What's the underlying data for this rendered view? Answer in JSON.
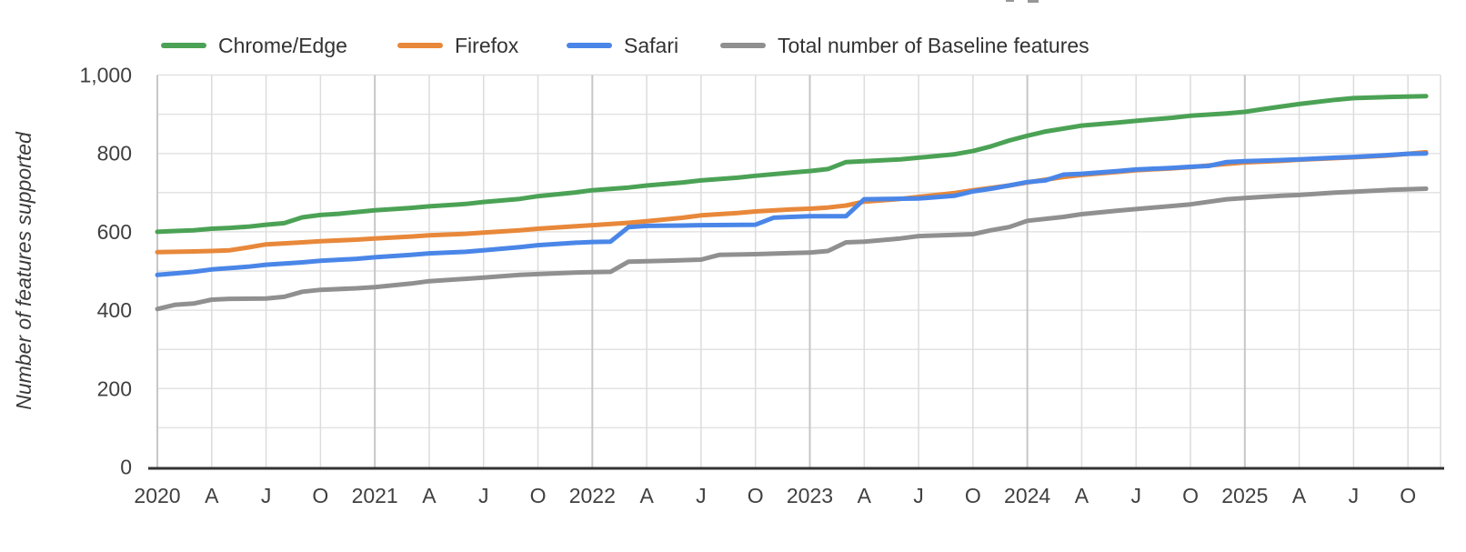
{
  "page": {
    "background": "#ffffff"
  },
  "cropped_title_artifact": {
    "visible": true,
    "description": "two tiny gray marks of cut-off text at top edge"
  },
  "legend": [
    {
      "label": "Chrome/Edge",
      "color": "#4ba255"
    },
    {
      "label": "Firefox",
      "color": "#e8883a"
    },
    {
      "label": "Safari",
      "color": "#4a86e8"
    },
    {
      "label": "Total number of Baseline features",
      "color": "#909090"
    }
  ],
  "chart_data": {
    "type": "line",
    "title": "",
    "xlabel": "",
    "ylabel": "Number of features supported",
    "x_unit": "months since 2020-01",
    "xlim": [
      0,
      70.9
    ],
    "ylim": [
      0,
      1000
    ],
    "grid": {
      "horizontal_step": 100,
      "vertical_step_months": 3,
      "h_color": "#e3e3e3",
      "v_color": "#dcdcdc",
      "v_year_color": "#c7c7c7",
      "axis_color": "#333333",
      "legend_position": "top"
    },
    "y_ticks": [
      {
        "v": 0,
        "label": "0"
      },
      {
        "v": 200,
        "label": "200"
      },
      {
        "v": 400,
        "label": "400"
      },
      {
        "v": 600,
        "label": "600"
      },
      {
        "v": 800,
        "label": "800"
      },
      {
        "v": 1000,
        "label": "1,000"
      }
    ],
    "x_ticks": [
      {
        "m": 0,
        "label": "2020"
      },
      {
        "m": 3,
        "label": "A"
      },
      {
        "m": 6,
        "label": "J"
      },
      {
        "m": 9,
        "label": "O"
      },
      {
        "m": 12,
        "label": "2021"
      },
      {
        "m": 15,
        "label": "A"
      },
      {
        "m": 18,
        "label": "J"
      },
      {
        "m": 21,
        "label": "O"
      },
      {
        "m": 24,
        "label": "2022"
      },
      {
        "m": 27,
        "label": "A"
      },
      {
        "m": 30,
        "label": "J"
      },
      {
        "m": 33,
        "label": "O"
      },
      {
        "m": 36,
        "label": "2023"
      },
      {
        "m": 39,
        "label": "A"
      },
      {
        "m": 42,
        "label": "J"
      },
      {
        "m": 45,
        "label": "O"
      },
      {
        "m": 48,
        "label": "2024"
      },
      {
        "m": 51,
        "label": "A"
      },
      {
        "m": 54,
        "label": "J"
      },
      {
        "m": 57,
        "label": "O"
      },
      {
        "m": 60,
        "label": "2025"
      },
      {
        "m": 63,
        "label": "A"
      },
      {
        "m": 66,
        "label": "J"
      },
      {
        "m": 69,
        "label": "O"
      }
    ],
    "series": [
      {
        "name": "Chrome/Edge",
        "color": "#4ba255",
        "points": [
          [
            0,
            600
          ],
          [
            1,
            602
          ],
          [
            2,
            604
          ],
          [
            3,
            608
          ],
          [
            4,
            610
          ],
          [
            5,
            613
          ],
          [
            6,
            618
          ],
          [
            7,
            622
          ],
          [
            8,
            637
          ],
          [
            9,
            643
          ],
          [
            10,
            646
          ],
          [
            12,
            655
          ],
          [
            14,
            661
          ],
          [
            15,
            665
          ],
          [
            17,
            671
          ],
          [
            18,
            676
          ],
          [
            20,
            684
          ],
          [
            21,
            691
          ],
          [
            23,
            700
          ],
          [
            24,
            706
          ],
          [
            26,
            713
          ],
          [
            27,
            718
          ],
          [
            29,
            726
          ],
          [
            30,
            731
          ],
          [
            32,
            738
          ],
          [
            33,
            743
          ],
          [
            35,
            751
          ],
          [
            36,
            755
          ],
          [
            37,
            760
          ],
          [
            38,
            778
          ],
          [
            39,
            780
          ],
          [
            41,
            785
          ],
          [
            42,
            789
          ],
          [
            44,
            798
          ],
          [
            45,
            806
          ],
          [
            46,
            818
          ],
          [
            47,
            833
          ],
          [
            48,
            845
          ],
          [
            49,
            856
          ],
          [
            51,
            871
          ],
          [
            53,
            879
          ],
          [
            54,
            883
          ],
          [
            56,
            891
          ],
          [
            57,
            896
          ],
          [
            59,
            902
          ],
          [
            60,
            906
          ],
          [
            61,
            913
          ],
          [
            63,
            926
          ],
          [
            65,
            937
          ],
          [
            66,
            941
          ],
          [
            68,
            944
          ],
          [
            70,
            946
          ]
        ]
      },
      {
        "name": "Firefox",
        "color": "#e8883a",
        "points": [
          [
            0,
            548
          ],
          [
            2,
            550
          ],
          [
            3,
            551
          ],
          [
            4,
            553
          ],
          [
            5,
            560
          ],
          [
            6,
            568
          ],
          [
            8,
            573
          ],
          [
            9,
            576
          ],
          [
            11,
            580
          ],
          [
            12,
            583
          ],
          [
            14,
            588
          ],
          [
            15,
            591
          ],
          [
            17,
            595
          ],
          [
            18,
            598
          ],
          [
            20,
            604
          ],
          [
            21,
            608
          ],
          [
            23,
            614
          ],
          [
            24,
            617
          ],
          [
            26,
            623
          ],
          [
            27,
            627
          ],
          [
            29,
            636
          ],
          [
            30,
            642
          ],
          [
            32,
            648
          ],
          [
            33,
            652
          ],
          [
            35,
            657
          ],
          [
            36,
            659
          ],
          [
            37,
            662
          ],
          [
            38,
            667
          ],
          [
            39,
            677
          ],
          [
            41,
            684
          ],
          [
            42,
            689
          ],
          [
            44,
            699
          ],
          [
            45,
            706
          ],
          [
            46,
            712
          ],
          [
            47,
            718
          ],
          [
            48,
            726
          ],
          [
            50,
            740
          ],
          [
            51,
            745
          ],
          [
            53,
            753
          ],
          [
            54,
            757
          ],
          [
            56,
            762
          ],
          [
            57,
            765
          ],
          [
            59,
            773
          ],
          [
            60,
            777
          ],
          [
            62,
            781
          ],
          [
            63,
            784
          ],
          [
            65,
            788
          ],
          [
            66,
            790
          ],
          [
            68,
            795
          ],
          [
            69,
            799
          ],
          [
            70,
            803
          ]
        ]
      },
      {
        "name": "Safari",
        "color": "#4a86e8",
        "points": [
          [
            0,
            490
          ],
          [
            1,
            494
          ],
          [
            2,
            498
          ],
          [
            3,
            504
          ],
          [
            5,
            511
          ],
          [
            6,
            516
          ],
          [
            8,
            522
          ],
          [
            9,
            526
          ],
          [
            11,
            531
          ],
          [
            12,
            535
          ],
          [
            14,
            541
          ],
          [
            15,
            545
          ],
          [
            17,
            549
          ],
          [
            18,
            553
          ],
          [
            20,
            561
          ],
          [
            21,
            566
          ],
          [
            23,
            572
          ],
          [
            24,
            574
          ],
          [
            25,
            575
          ],
          [
            26,
            612
          ],
          [
            27,
            615
          ],
          [
            29,
            616
          ],
          [
            30,
            617
          ],
          [
            33,
            618
          ],
          [
            34,
            636
          ],
          [
            35,
            638
          ],
          [
            36,
            640
          ],
          [
            38,
            640
          ],
          [
            39,
            683
          ],
          [
            42,
            685
          ],
          [
            44,
            692
          ],
          [
            45,
            703
          ],
          [
            46,
            710
          ],
          [
            47,
            718
          ],
          [
            48,
            727
          ],
          [
            49,
            731
          ],
          [
            50,
            746
          ],
          [
            51,
            748
          ],
          [
            53,
            755
          ],
          [
            54,
            759
          ],
          [
            56,
            763
          ],
          [
            57,
            766
          ],
          [
            58,
            768
          ],
          [
            59,
            778
          ],
          [
            60,
            780
          ],
          [
            62,
            783
          ],
          [
            63,
            785
          ],
          [
            65,
            789
          ],
          [
            66,
            791
          ],
          [
            68,
            796
          ],
          [
            69,
            799
          ],
          [
            70,
            800
          ]
        ]
      },
      {
        "name": "Total number of Baseline features",
        "color": "#909090",
        "points": [
          [
            0,
            403
          ],
          [
            1,
            414
          ],
          [
            2,
            417
          ],
          [
            3,
            427
          ],
          [
            4,
            429
          ],
          [
            6,
            430
          ],
          [
            7,
            434
          ],
          [
            8,
            447
          ],
          [
            9,
            452
          ],
          [
            11,
            456
          ],
          [
            12,
            459
          ],
          [
            14,
            468
          ],
          [
            15,
            474
          ],
          [
            17,
            480
          ],
          [
            18,
            483
          ],
          [
            20,
            490
          ],
          [
            21,
            492
          ],
          [
            23,
            496
          ],
          [
            24,
            497
          ],
          [
            25,
            498
          ],
          [
            26,
            524
          ],
          [
            28,
            526
          ],
          [
            30,
            529
          ],
          [
            31,
            541
          ],
          [
            33,
            543
          ],
          [
            35,
            546
          ],
          [
            36,
            547
          ],
          [
            37,
            551
          ],
          [
            38,
            573
          ],
          [
            39,
            575
          ],
          [
            41,
            583
          ],
          [
            42,
            589
          ],
          [
            44,
            592
          ],
          [
            45,
            594
          ],
          [
            46,
            604
          ],
          [
            47,
            612
          ],
          [
            48,
            628
          ],
          [
            50,
            638
          ],
          [
            51,
            645
          ],
          [
            53,
            654
          ],
          [
            54,
            658
          ],
          [
            56,
            666
          ],
          [
            57,
            670
          ],
          [
            59,
            683
          ],
          [
            60,
            686
          ],
          [
            62,
            692
          ],
          [
            63,
            694
          ],
          [
            65,
            700
          ],
          [
            66,
            702
          ],
          [
            68,
            707
          ],
          [
            70,
            710
          ]
        ]
      }
    ]
  }
}
